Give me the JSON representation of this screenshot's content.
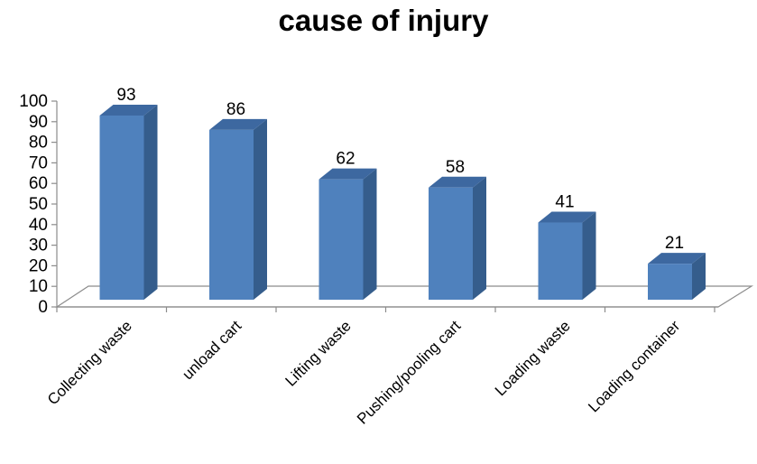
{
  "chart_data": {
    "type": "bar",
    "title": "cause of injury",
    "xlabel": "",
    "ylabel": "",
    "categories": [
      "Collecting waste",
      "unload cart",
      "Lifting waste",
      "Pushing/pooling cart",
      "Loading waste",
      "Loading container"
    ],
    "values": [
      93,
      86,
      62,
      58,
      41,
      21
    ],
    "ylim": [
      0,
      100
    ],
    "yticks": [
      "0",
      "10",
      "20",
      "30",
      "40",
      "50",
      "60",
      "70",
      "80",
      "90",
      "100"
    ],
    "data_labels": [
      "93",
      "86",
      "62",
      "58",
      "41",
      "21"
    ],
    "grid": false,
    "legend": "none",
    "style": "3d-column",
    "colors": {
      "front": "#4f81bd",
      "side": "#355d8c",
      "top": "#3d68a0"
    }
  }
}
